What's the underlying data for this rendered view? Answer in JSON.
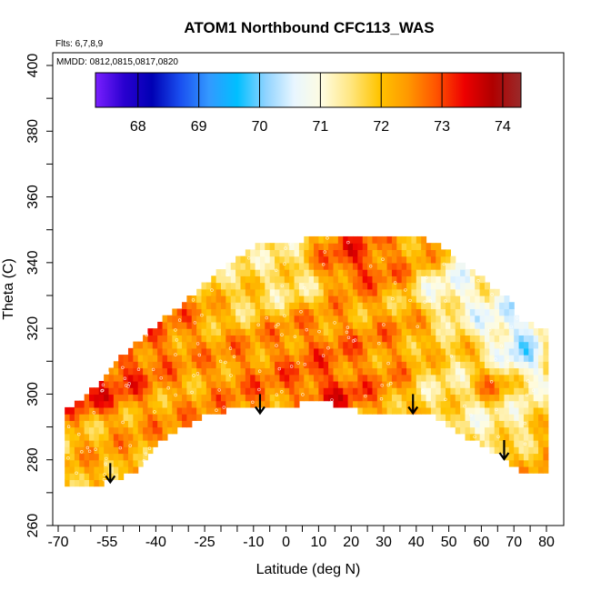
{
  "chart_data": {
    "type": "heatmap",
    "title": "ATOM1 Northbound CFC113_WAS",
    "flights_label": "Flts: 6,7,8,9",
    "dates_label": "MMDD: 0812,0815,0817,0820",
    "xlabel": "Latitude (deg N)",
    "ylabel": "Theta (C)",
    "xlim": [
      -70,
      80
    ],
    "ylim": [
      260,
      400
    ],
    "x_tick_labels": [
      "-70",
      "-55",
      "-40",
      "-25",
      "-10",
      "0",
      "10",
      "20",
      "30",
      "40",
      "50",
      "60",
      "70",
      "80"
    ],
    "y_tick_labels": [
      "260",
      "280",
      "300",
      "320",
      "340",
      "360",
      "380",
      "400"
    ],
    "colorbar": {
      "min": 67.3,
      "max": 74.3,
      "tick_labels": [
        "68",
        "69",
        "70",
        "71",
        "72",
        "73",
        "74"
      ],
      "colors": [
        "#7a1fff",
        "#2a00d0",
        "#0000b4",
        "#1a50f0",
        "#3399ff",
        "#00bfff",
        "#8fd3ff",
        "#e8f6ff",
        "#fffce0",
        "#ffe680",
        "#ffc400",
        "#ff9900",
        "#ff5500",
        "#ee0000",
        "#b00000",
        "#9a2a2a"
      ]
    },
    "coverage": {
      "lower_boundary": [
        [
          -68,
          272
        ],
        [
          -60,
          272
        ],
        [
          -47,
          276
        ],
        [
          -37,
          287
        ],
        [
          -26,
          293
        ],
        [
          -14,
          296
        ],
        [
          -3,
          296
        ],
        [
          10,
          298
        ],
        [
          22,
          295
        ],
        [
          35,
          294
        ],
        [
          45,
          294
        ],
        [
          55,
          287
        ],
        [
          65,
          282
        ],
        [
          73,
          276
        ],
        [
          80,
          277
        ]
      ],
      "upper_boundary": [
        [
          -68,
          295
        ],
        [
          -60,
          301
        ],
        [
          -50,
          312
        ],
        [
          -40,
          321
        ],
        [
          -30,
          329
        ],
        [
          -20,
          338
        ],
        [
          -10,
          345
        ],
        [
          0,
          346
        ],
        [
          10,
          348
        ],
        [
          20,
          348
        ],
        [
          30,
          348
        ],
        [
          40,
          348
        ],
        [
          46,
          346
        ],
        [
          55,
          339
        ],
        [
          62,
          334
        ],
        [
          68,
          329
        ],
        [
          72,
          323
        ],
        [
          80,
          319
        ]
      ]
    },
    "field_regions": [
      {
        "lat_range": [
          -68,
          -60
        ],
        "theta_range": [
          272,
          296
        ],
        "value": 72.1
      },
      {
        "lat_range": [
          -68,
          -58
        ],
        "theta_range": [
          296,
          302
        ],
        "value": 73.6
      },
      {
        "lat_range": [
          -60,
          -45
        ],
        "theta_range": [
          300,
          312
        ],
        "value": 73.3
      },
      {
        "lat_range": [
          -50,
          -35
        ],
        "theta_range": [
          310,
          322
        ],
        "value": 72.9
      },
      {
        "lat_range": [
          -40,
          -25
        ],
        "theta_range": [
          318,
          330
        ],
        "value": 72.6
      },
      {
        "lat_range": [
          -25,
          -10
        ],
        "theta_range": [
          326,
          342
        ],
        "value": 71.6
      },
      {
        "lat_range": [
          -10,
          10
        ],
        "theta_range": [
          330,
          346
        ],
        "value": 71.2
      },
      {
        "lat_range": [
          10,
          30
        ],
        "theta_range": [
          336,
          346
        ],
        "value": 73.4
      },
      {
        "lat_range": [
          30,
          46
        ],
        "theta_range": [
          340,
          348
        ],
        "value": 72.4
      },
      {
        "lat_range": [
          45,
          60
        ],
        "theta_range": [
          325,
          340
        ],
        "value": 70.6
      },
      {
        "lat_range": [
          60,
          75
        ],
        "theta_range": [
          316,
          330
        ],
        "value": 70.3
      },
      {
        "lat_range": [
          68,
          76
        ],
        "theta_range": [
          296,
          322
        ],
        "value": 69.8
      },
      {
        "lat_range": [
          62,
          72
        ],
        "theta_range": [
          298,
          306
        ],
        "value": 73.4
      },
      {
        "lat_range": [
          -45,
          -20
        ],
        "theta_range": [
          288,
          300
        ],
        "value": 72.4
      },
      {
        "lat_range": [
          -20,
          0
        ],
        "theta_range": [
          296,
          312
        ],
        "value": 72.7
      },
      {
        "lat_range": [
          0,
          20
        ],
        "theta_range": [
          298,
          320
        ],
        "value": 72.9
      },
      {
        "lat_range": [
          20,
          40
        ],
        "theta_range": [
          300,
          318
        ],
        "value": 72.6
      },
      {
        "lat_range": [
          40,
          55
        ],
        "theta_range": [
          295,
          312
        ],
        "value": 71.3
      },
      {
        "lat_range": [
          55,
          68
        ],
        "theta_range": [
          285,
          300
        ],
        "value": 71.0
      },
      {
        "lat_range": [
          10,
          20
        ],
        "theta_range": [
          298,
          304
        ],
        "value": 73.7
      }
    ],
    "arrows": [
      {
        "lat": -54,
        "theta": 279
      },
      {
        "lat": -8,
        "theta": 300
      },
      {
        "lat": 39,
        "theta": 300
      },
      {
        "lat": 67,
        "theta": 286
      }
    ]
  }
}
